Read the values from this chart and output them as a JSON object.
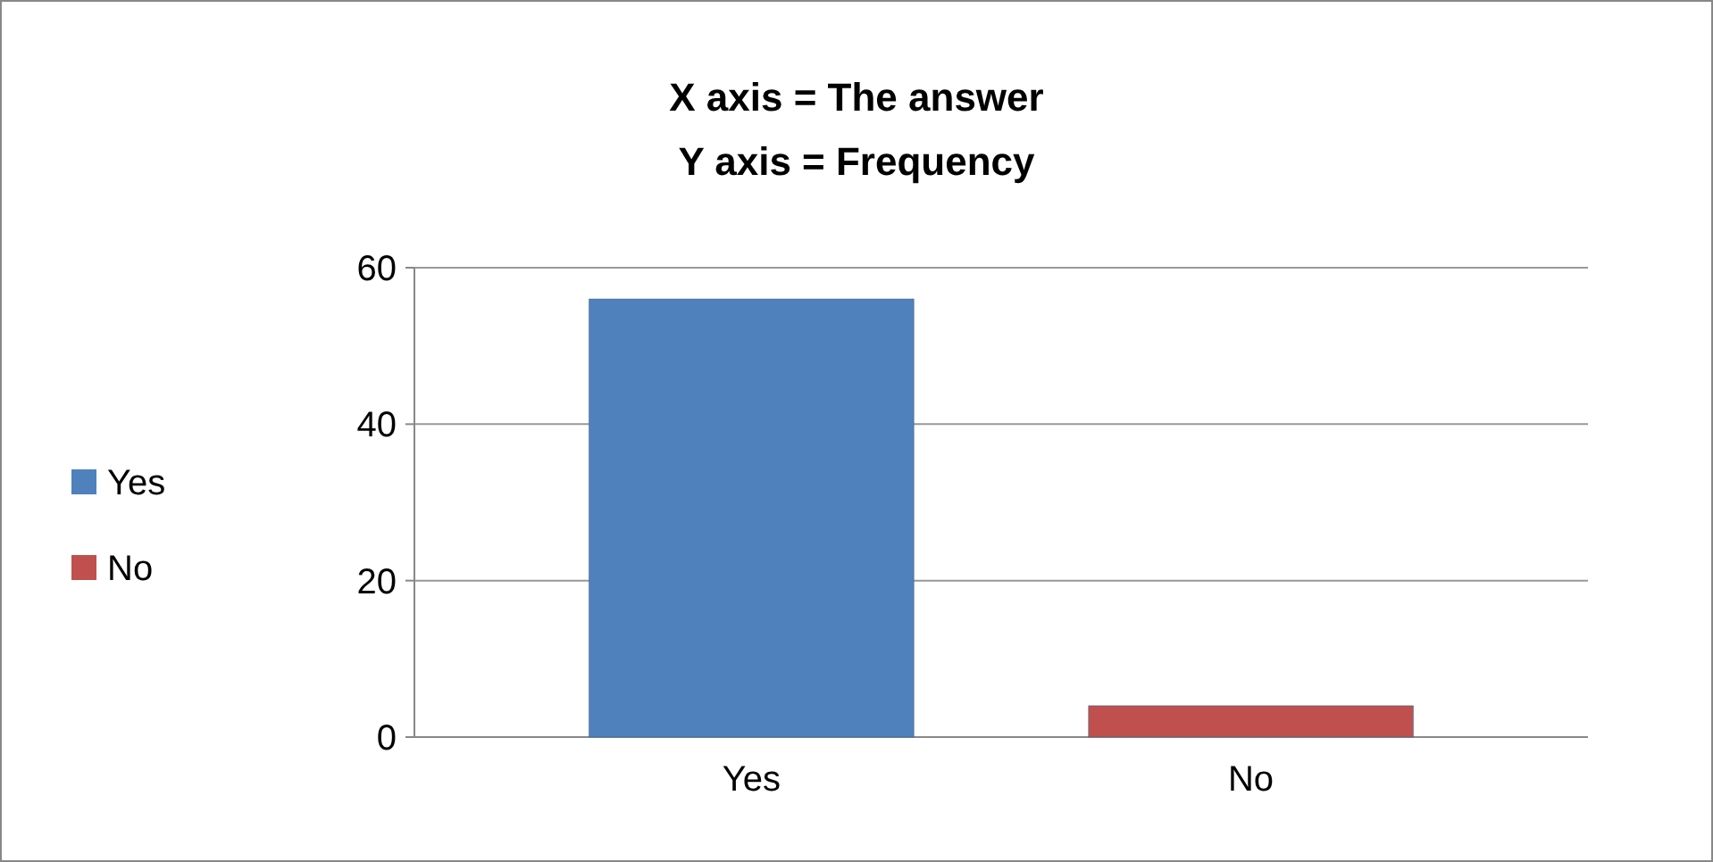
{
  "chart_data": {
    "type": "bar",
    "title": "X axis = The answer\nY axis = Frequency",
    "categories": [
      "Yes",
      "No"
    ],
    "series": [
      {
        "name": "Yes",
        "color": "#4f81bd",
        "values": [
          56,
          null
        ]
      },
      {
        "name": "No",
        "color": "#c0504d",
        "values": [
          null,
          4
        ]
      }
    ],
    "ylim": [
      0,
      60
    ],
    "yticks": [
      0,
      20,
      40,
      60
    ],
    "grid": "y",
    "legend": "left"
  }
}
